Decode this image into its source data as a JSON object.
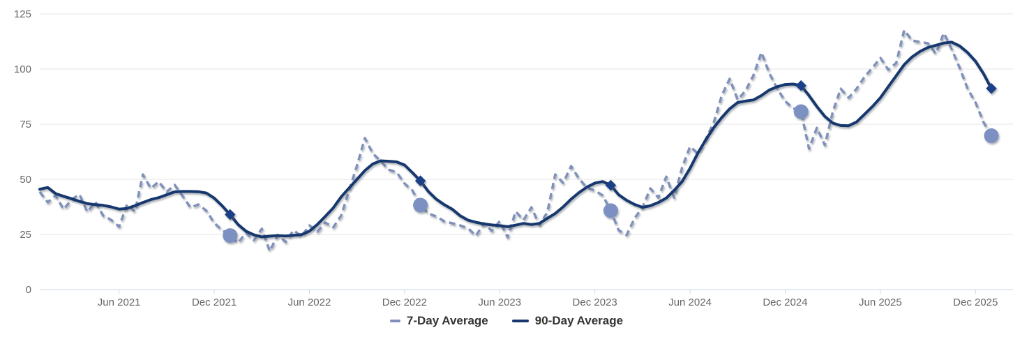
{
  "colors": {
    "background": "#ffffff",
    "gridline": "#e6e6e6",
    "axis_line": "#ccd6eb",
    "tick_label": "#666666",
    "legend_text": "#333333",
    "seven_day_line": "#7e90ba",
    "ninety_day_line": "#16376e",
    "circle_marker": "#7b90c1",
    "diamond_marker": "#1c4187"
  },
  "chart_data": {
    "type": "line",
    "title": "",
    "xlabel": "",
    "ylabel": "",
    "grid": "horizontal",
    "legend_position": "bottom-center",
    "x_axis": {
      "start": "Jan 2021",
      "end": "Jan 2026",
      "sample_interval_months": 0.5,
      "tick_labels": [
        "Jun 2021",
        "Dec 2021",
        "Jun 2022",
        "Dec 2022",
        "Jun 2023",
        "Dec 2023",
        "Jun 2024",
        "Dec 2024",
        "Jun 2025",
        "Dec 2025"
      ],
      "tick_month_offsets": [
        5,
        11,
        17,
        23,
        29,
        35,
        41,
        47,
        53,
        59
      ]
    },
    "y_axis": {
      "min": 0,
      "max": 125,
      "ticks": [
        0,
        25,
        50,
        75,
        100,
        125
      ]
    },
    "series": [
      {
        "name": "7-Day Average",
        "style": "dashed",
        "color": "#7e90ba",
        "marker_shape": "circle",
        "marker_color": "#7b90c1",
        "values": [
          44.3,
          39.6,
          42.7,
          36.4,
          40.8,
          43.2,
          35.2,
          39.8,
          33.5,
          31.6,
          28.5,
          38.6,
          35.4,
          52.2,
          45.9,
          49.0,
          44.3,
          47.5,
          42.5,
          37.2,
          38.6,
          35.8,
          30.2,
          27.0,
          24.5,
          21.2,
          25.8,
          22.4,
          27.6,
          17.4,
          24.8,
          21.6,
          26.9,
          24.1,
          29.1,
          26.2,
          30.4,
          28.2,
          33.5,
          44.9,
          56.3,
          68.7,
          61.7,
          58.2,
          54.4,
          53.2,
          48.1,
          44.9,
          38.3,
          34.5,
          33.2,
          31.0,
          30.1,
          29.1,
          27.8,
          24.4,
          30.1,
          26.6,
          31.0,
          23.7,
          35.4,
          31.6,
          37.3,
          29.2,
          35.1,
          52.2,
          48.4,
          56.0,
          50.3,
          46.2,
          44.9,
          42.7,
          35.8,
          26.9,
          24.7,
          32.3,
          37.3,
          45.9,
          41.7,
          51.2,
          41.7,
          55.4,
          64.9,
          61.7,
          68.4,
          75.9,
          88.0,
          95.6,
          86.1,
          90.2,
          97.2,
          107.6,
          98.1,
          91.1,
          85.4,
          82.3,
          80.7,
          63.9,
          73.4,
          65.5,
          80.7,
          91.1,
          87.0,
          91.1,
          96.5,
          100.6,
          105.1,
          99.7,
          102.8,
          117.7,
          113.0,
          112.3,
          111.7,
          107.0,
          116.4,
          109.0,
          100.6,
          91.1,
          84.8,
          76.0,
          69.8
        ]
      },
      {
        "name": "90-Day Average",
        "style": "solid",
        "color": "#16376e",
        "marker_shape": "diamond",
        "marker_color": "#1c4187",
        "values": [
          45.5,
          46.3,
          43.5,
          42.3,
          41.2,
          40.0,
          39.0,
          38.5,
          38.2,
          37.5,
          36.5,
          36.8,
          38.0,
          39.5,
          40.8,
          41.7,
          43.0,
          44.3,
          44.5,
          44.5,
          44.4,
          43.8,
          41.5,
          38.0,
          34.0,
          29.5,
          26.5,
          24.8,
          23.9,
          24.2,
          24.5,
          24.3,
          24.6,
          24.9,
          26.5,
          29.5,
          33.2,
          37.0,
          42.0,
          46.0,
          50.0,
          54.0,
          57.0,
          58.4,
          58.2,
          57.9,
          56.5,
          53.0,
          49.3,
          44.5,
          41.0,
          38.5,
          36.5,
          33.5,
          31.5,
          30.5,
          29.8,
          29.3,
          29.0,
          28.5,
          29.2,
          30.0,
          29.5,
          30.0,
          32.3,
          34.5,
          37.5,
          41.0,
          44.0,
          46.5,
          48.3,
          49.0,
          47.3,
          43.0,
          40.5,
          38.6,
          37.3,
          38.0,
          39.5,
          41.5,
          45.0,
          49.0,
          55.0,
          62.0,
          68.0,
          73.5,
          78.0,
          82.0,
          84.8,
          85.5,
          86.0,
          88.0,
          90.5,
          92.0,
          93.0,
          93.2,
          92.5,
          88.0,
          83.0,
          78.5,
          75.5,
          74.4,
          74.3,
          76.0,
          79.5,
          83.0,
          87.0,
          92.0,
          97.0,
          102.0,
          105.5,
          108.0,
          109.8,
          110.8,
          111.8,
          112.2,
          110.5,
          107.5,
          103.5,
          98.0,
          91.2
        ]
      }
    ],
    "year_end_markers": [
      {
        "label": "Dec 2021",
        "month_offset": 12,
        "seven_day": 24.5,
        "ninety_day": 34.0
      },
      {
        "label": "Dec 2022",
        "month_offset": 24,
        "seven_day": 38.3,
        "ninety_day": 49.3
      },
      {
        "label": "Dec 2023",
        "month_offset": 36,
        "seven_day": 35.8,
        "ninety_day": 47.3
      },
      {
        "label": "Dec 2024",
        "month_offset": 48,
        "seven_day": 80.7,
        "ninety_day": 92.5
      },
      {
        "label": "Dec 2025",
        "month_offset": 60,
        "seven_day": 69.8,
        "ninety_day": 91.2
      }
    ]
  }
}
